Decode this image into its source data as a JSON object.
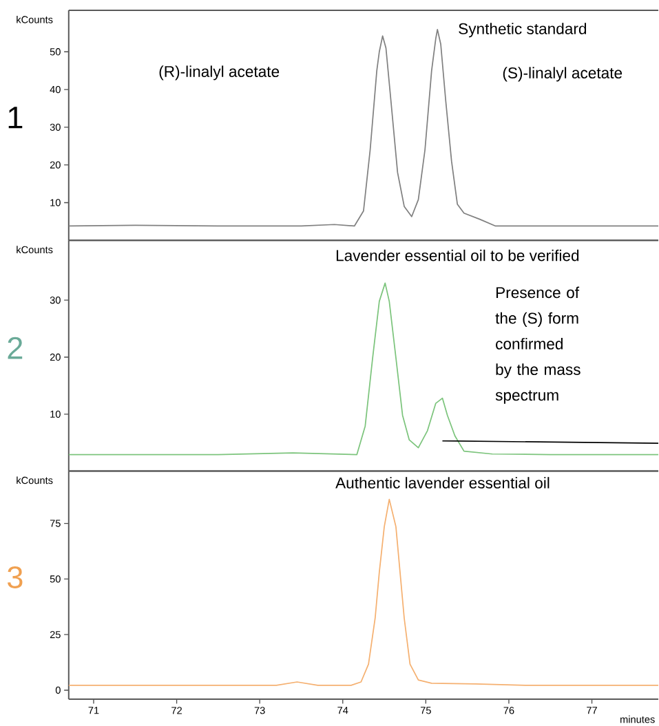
{
  "chart_data": [
    {
      "type": "line",
      "title": "1",
      "ylabel": "kCounts",
      "xlim": [
        70.7,
        77.8
      ],
      "xticks": [
        71,
        72,
        73,
        74,
        75,
        76,
        77
      ],
      "ylim": [
        0,
        61
      ],
      "yticks": [
        10,
        20,
        30,
        40,
        50
      ],
      "tick_labels": "y",
      "grid": false,
      "marker": "none",
      "line_style": "solid",
      "annotations": [
        "Synthetic standard",
        "(R)-linalyl acetate",
        "(S)-linalyl acetate"
      ],
      "series": [
        {
          "color": "#808080",
          "x": [
            70.7,
            71.5,
            72.5,
            73.5,
            73.9,
            74.14,
            74.25,
            74.33,
            74.41,
            74.44,
            74.48,
            74.52,
            74.58,
            74.66,
            74.74,
            74.83,
            74.91,
            74.99,
            75.07,
            75.12,
            75.14,
            75.18,
            75.24,
            75.31,
            75.38,
            75.46,
            75.65,
            75.84,
            76.5,
            77.8
          ],
          "values": [
            3.8,
            4.0,
            3.8,
            3.8,
            4.2,
            3.8,
            7.8,
            24,
            45,
            50,
            54.2,
            51,
            37,
            18,
            9,
            6.3,
            10.8,
            24,
            45,
            53.5,
            55.9,
            52,
            37,
            21,
            9.6,
            7.2,
            5.6,
            3.8,
            3.8,
            3.8
          ]
        }
      ]
    },
    {
      "type": "line",
      "title": "2",
      "ylabel": "kCounts",
      "xlim": [
        70.7,
        77.8
      ],
      "xticks": [
        71,
        72,
        73,
        74,
        75,
        76,
        77
      ],
      "ylim": [
        0,
        40.5
      ],
      "yticks": [
        10,
        20,
        30
      ],
      "tick_labels": "y",
      "grid": false,
      "marker": "none",
      "line_style": "solid",
      "annotations": [
        "Lavender essential oil to be verified",
        "Presence of the (S) form confirmed by the mass spectrum"
      ],
      "series": [
        {
          "color": "#7cc47c",
          "x": [
            70.7,
            71.5,
            72.5,
            73.4,
            74.17,
            74.27,
            74.36,
            74.44,
            74.51,
            74.56,
            74.64,
            74.72,
            74.8,
            74.91,
            75.02,
            75.12,
            75.2,
            75.26,
            75.35,
            75.46,
            75.8,
            76.5,
            77.8
          ],
          "values": [
            2.9,
            2.9,
            2.9,
            3.2,
            2.9,
            7.9,
            19.9,
            29.8,
            33.0,
            29.8,
            19.9,
            9.8,
            5.5,
            4.1,
            7.1,
            11.9,
            12.8,
            9.8,
            6.2,
            3.5,
            3.0,
            2.9,
            2.9
          ]
        },
        {
          "color": "#000000",
          "x": [
            75.2,
            77.8
          ],
          "values": [
            5.3,
            4.9
          ]
        }
      ]
    },
    {
      "type": "line",
      "title": "3",
      "ylabel": "kCounts",
      "xlabel": "minutes",
      "xlim": [
        70.7,
        77.8
      ],
      "xticks": [
        71,
        72,
        73,
        74,
        75,
        76,
        77
      ],
      "ylim": [
        -4,
        98.5
      ],
      "yticks": [
        0,
        25,
        50,
        75
      ],
      "grid": false,
      "marker": "none",
      "line_style": "solid",
      "annotations": [
        "Authentic lavender essential oil"
      ],
      "series": [
        {
          "color": "#f5b070",
          "x": [
            70.7,
            71.5,
            72.5,
            73.2,
            73.45,
            73.7,
            74.1,
            74.22,
            74.31,
            74.39,
            74.44,
            74.5,
            74.56,
            74.64,
            74.69,
            74.74,
            74.81,
            74.91,
            75.07,
            75.6,
            76.2,
            77.8
          ],
          "values": [
            2.2,
            2.2,
            2.2,
            2.2,
            3.7,
            2.2,
            2.2,
            3.7,
            11.7,
            32.4,
            53,
            73.5,
            85.8,
            73.5,
            53,
            32.4,
            11.7,
            4.6,
            3.1,
            2.8,
            2.2,
            2.2
          ]
        }
      ]
    }
  ]
}
